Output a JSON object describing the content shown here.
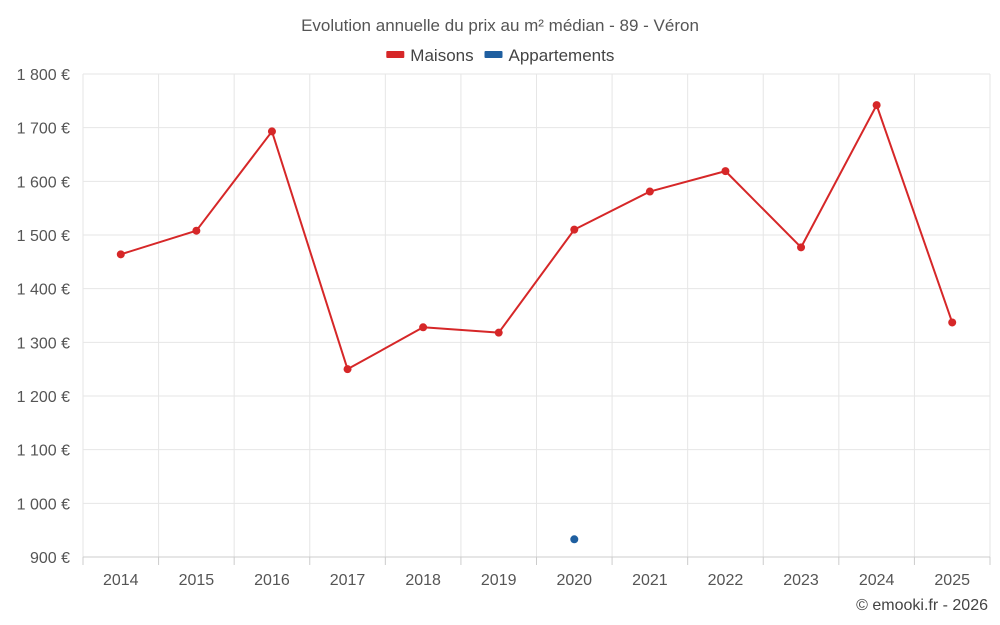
{
  "chart_data": {
    "type": "line",
    "title": "Evolution annuelle du prix au m² médian - 89 - Véron",
    "categories": [
      "2014",
      "2015",
      "2016",
      "2017",
      "2018",
      "2019",
      "2020",
      "2021",
      "2022",
      "2023",
      "2024",
      "2025"
    ],
    "series": [
      {
        "name": "Maisons",
        "color": "#d62728",
        "values": [
          1464,
          1508,
          1693,
          1250,
          1328,
          1318,
          1510,
          1581,
          1619,
          1477,
          1742,
          1337
        ]
      },
      {
        "name": "Appartements",
        "color": "#1f5fa0",
        "values": [
          null,
          null,
          null,
          null,
          null,
          null,
          933,
          null,
          null,
          null,
          null,
          null
        ]
      }
    ],
    "ylim": [
      900,
      1800
    ],
    "yticks": [
      900,
      1000,
      1100,
      1200,
      1300,
      1400,
      1500,
      1600,
      1700,
      1800
    ],
    "ytick_labels": [
      "900 €",
      "1 000 €",
      "1 100 €",
      "1 200 €",
      "1 300 €",
      "1 400 €",
      "1 500 €",
      "1 600 €",
      "1 700 €",
      "1 800 €"
    ],
    "xlabel": "",
    "ylabel": "",
    "grid": true,
    "legend": "top-center"
  },
  "credit": "© emooki.fr - 2026"
}
